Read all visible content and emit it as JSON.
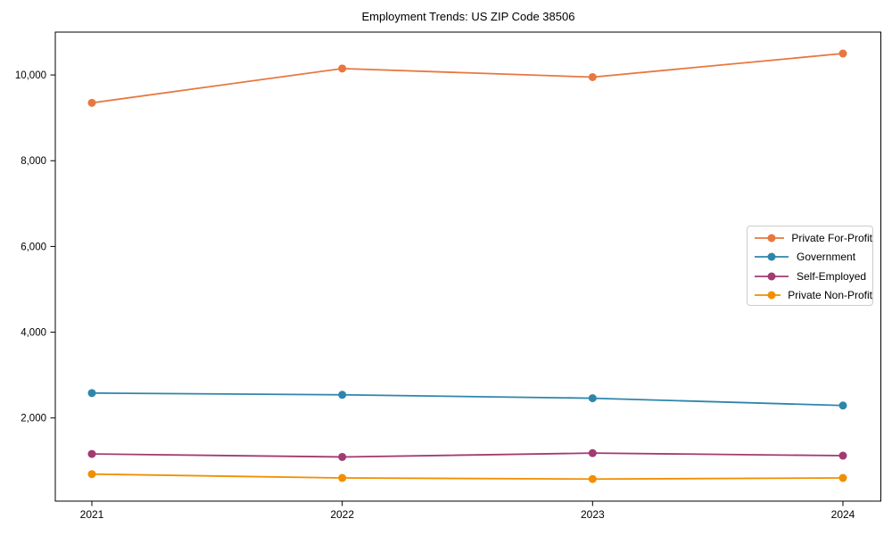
{
  "chart_data": {
    "type": "line",
    "title": "Employment Trends: US ZIP Code 38506",
    "categories": [
      "2021",
      "2022",
      "2023",
      "2024"
    ],
    "series": [
      {
        "name": "Private For-Profit",
        "color": "#E8773F",
        "values": [
          9350,
          10150,
          9950,
          10500
        ]
      },
      {
        "name": "Government",
        "color": "#2E86AB",
        "values": [
          2580,
          2540,
          2460,
          2290
        ]
      },
      {
        "name": "Self-Employed",
        "color": "#A23B72",
        "values": [
          1160,
          1090,
          1180,
          1120
        ]
      },
      {
        "name": "Private Non-Profit",
        "color": "#F18F01",
        "values": [
          690,
          600,
          575,
          600
        ]
      }
    ],
    "xlabel": "",
    "ylabel": "",
    "ylim": [
      60,
      11000
    ],
    "yticks": [
      2000,
      4000,
      6000,
      8000,
      10000
    ],
    "ytick_labels": [
      "2,000",
      "4,000",
      "6,000",
      "8,000",
      "10,000"
    ],
    "grid": false,
    "legend_position": "center-right",
    "marker_style": "circle",
    "axis_color": "#000000"
  }
}
